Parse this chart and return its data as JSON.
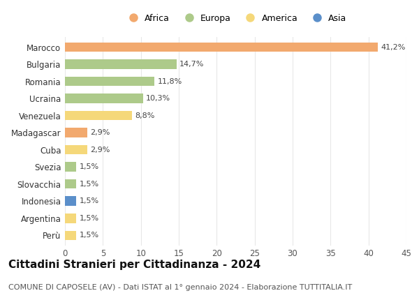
{
  "countries": [
    "Marocco",
    "Bulgaria",
    "Romania",
    "Ucraina",
    "Venezuela",
    "Madagascar",
    "Cuba",
    "Svezia",
    "Slovacchia",
    "Indonesia",
    "Argentina",
    "Perù"
  ],
  "values": [
    41.2,
    14.7,
    11.8,
    10.3,
    8.8,
    2.9,
    2.9,
    1.5,
    1.5,
    1.5,
    1.5,
    1.5
  ],
  "labels": [
    "41,2%",
    "14,7%",
    "11,8%",
    "10,3%",
    "8,8%",
    "2,9%",
    "2,9%",
    "1,5%",
    "1,5%",
    "1,5%",
    "1,5%",
    "1,5%"
  ],
  "continents": [
    "Africa",
    "Europa",
    "Europa",
    "Europa",
    "America",
    "Africa",
    "America",
    "Europa",
    "Europa",
    "Asia",
    "America",
    "America"
  ],
  "continent_colors": {
    "Africa": "#F2A96E",
    "Europa": "#ADCA8A",
    "America": "#F5D87A",
    "Asia": "#5B8FCA"
  },
  "legend_order": [
    "Africa",
    "Europa",
    "America",
    "Asia"
  ],
  "title": "Cittadini Stranieri per Cittadinanza - 2024",
  "subtitle": "COMUNE DI CAPOSELE (AV) - Dati ISTAT al 1° gennaio 2024 - Elaborazione TUTTITALIA.IT",
  "xlim": [
    0,
    45
  ],
  "xticks": [
    0,
    5,
    10,
    15,
    20,
    25,
    30,
    35,
    40,
    45
  ],
  "background_color": "#ffffff",
  "grid_color": "#e8e8e8",
  "bar_height": 0.55,
  "title_fontsize": 11,
  "subtitle_fontsize": 8,
  "tick_fontsize": 8.5,
  "label_fontsize": 8,
  "legend_fontsize": 9
}
